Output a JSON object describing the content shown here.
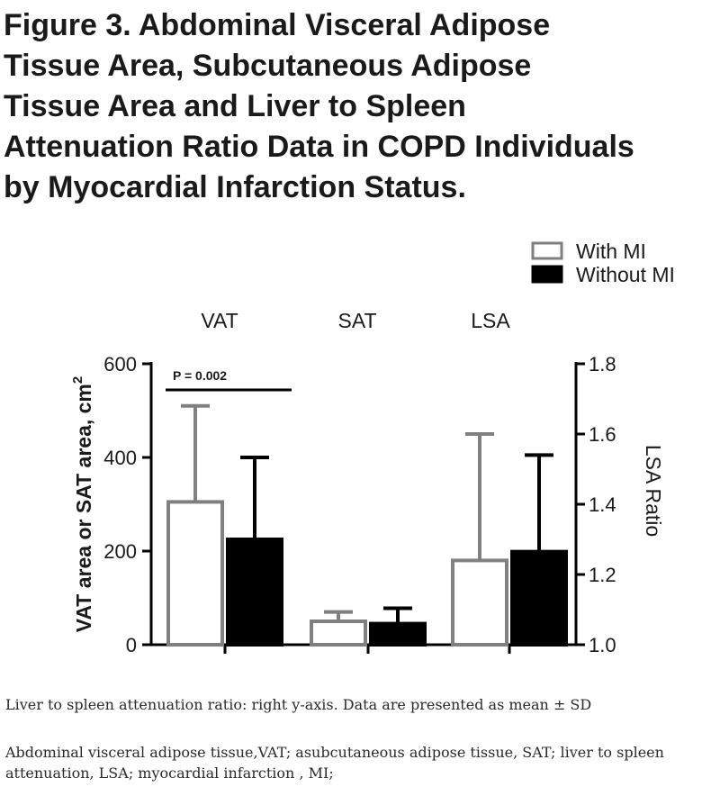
{
  "figure": {
    "title_lines": [
      "Figure 3. Abdominal Visceral Adipose",
      "Tissue  Area, Subcutaneous Adipose",
      "Tissue Area and Liver to Spleen",
      "Attenuation Ratio Data in COPD Individuals",
      "by Myocardial Infarction Status."
    ],
    "captions": [
      "Liver to spleen attenuation ratio: right y-axis. Data are presented as mean ± SD",
      "Abdominal visceral adipose tissue,VAT; asubcutaneous adipose tissue, SAT;  liver to spleen attenuation, LSA;  myocardial infarction ,  MI;"
    ]
  },
  "chart_data": {
    "type": "bar",
    "categories": [
      "VAT",
      "SAT",
      "LSA"
    ],
    "series": [
      {
        "name": "With MI",
        "values": [
          305,
          50,
          1.24
        ],
        "error": [
          205,
          20,
          0.36
        ],
        "color": "#ffffff",
        "stroke": "#808080"
      },
      {
        "name": "Without MI",
        "values": [
          225,
          45,
          1.265
        ],
        "error": [
          175,
          33,
          0.275
        ],
        "color": "#000000",
        "stroke": "#000000"
      }
    ],
    "left_axis": {
      "label": "VAT area or SAT area, cm",
      "label_superscript": "2",
      "ylim": [
        0,
        600
      ],
      "ticks": [
        0,
        200,
        400,
        600
      ],
      "tick_labels": [
        "0",
        "200",
        "400",
        "600"
      ]
    },
    "right_axis": {
      "label": "LSA Ratio",
      "ylim": [
        1.0,
        1.8
      ],
      "ticks": [
        1.0,
        1.2,
        1.4,
        1.6,
        1.8
      ],
      "tick_labels": [
        "1.0",
        "1.2",
        "1.4",
        "1.6",
        "1.8"
      ],
      "applies_to": [
        "LSA"
      ]
    },
    "annotations": [
      {
        "text": "P = 0.002",
        "category": "VAT"
      }
    ],
    "legend": {
      "position": "top-right",
      "entries": [
        "With MI",
        "Without MI"
      ]
    },
    "grid": false
  }
}
